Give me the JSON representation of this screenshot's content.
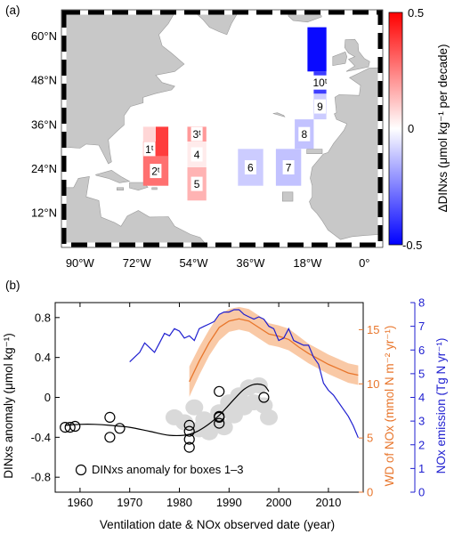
{
  "panel_a": {
    "label": "(a)",
    "lon_ticks": [
      "90°W",
      "72°W",
      "54°W",
      "36°W",
      "18°W",
      "0°"
    ],
    "lat_ticks": [
      "60°N",
      "48°N",
      "36°N",
      "24°N",
      "12°N"
    ],
    "colorbar": {
      "ticks": [
        "0.5",
        "0",
        "-0.5"
      ],
      "label": "ΔDINxs (μmol kg⁻¹ per decade)",
      "colors": {
        "max": "#ff0000",
        "mid": "#ffffff",
        "min": "#0000ff"
      }
    },
    "land_color": "#c8c8c8",
    "boxes": [
      {
        "label": "1ᵗ",
        "lon": [
          -70,
          -66
        ],
        "lat": [
          27,
          31
        ],
        "value": 0.22
      },
      {
        "label": "",
        "lon": [
          -66,
          -62
        ],
        "lat": [
          27,
          35
        ],
        "value": 0.38
      },
      {
        "label": "",
        "lon": [
          -70,
          -66
        ],
        "lat": [
          31,
          35
        ],
        "value": 0.08
      },
      {
        "label": "2ᵗ",
        "lon": [
          -70,
          -62
        ],
        "lat": [
          19,
          27
        ],
        "value": 0.28
      },
      {
        "label": "3ᵗ",
        "lon": [
          -56,
          -50
        ],
        "lat": [
          31,
          35
        ],
        "value": 0.2
      },
      {
        "label": "4",
        "lon": [
          -56,
          -50
        ],
        "lat": [
          24,
          31
        ],
        "value": 0.04
      },
      {
        "label": "5",
        "lon": [
          -56,
          -50
        ],
        "lat": [
          15,
          24
        ],
        "value": 0.15
      },
      {
        "label": "6",
        "lon": [
          -40,
          -32
        ],
        "lat": [
          19,
          29
        ],
        "value": -0.1
      },
      {
        "label": "7",
        "lon": [
          -28,
          -20
        ],
        "lat": [
          19,
          29
        ],
        "value": -0.12
      },
      {
        "label": "8",
        "lon": [
          -22,
          -16
        ],
        "lat": [
          29,
          37
        ],
        "value": -0.12
      },
      {
        "label": "9",
        "lon": [
          -16,
          -12
        ],
        "lat": [
          37,
          44
        ],
        "value": -0.1
      },
      {
        "label": "10ᵗ",
        "lon": [
          -16,
          -12
        ],
        "lat": [
          44,
          50
        ],
        "value": -0.38
      },
      {
        "label": "",
        "lon": [
          -18,
          -12
        ],
        "lat": [
          50,
          62
        ],
        "value": -0.48
      }
    ]
  },
  "panel_b": {
    "label": "(b)",
    "legend": "DINxs anomaly for boxes 1–3",
    "y_left_label": "DINxs anomaly (μmol kg⁻¹)",
    "y_mid_label": "WD of NOx (mmol N m⁻² yr⁻¹)",
    "y_right_label": "NOx emission (Tg N yr⁻¹)",
    "x_label": "Ventilation date & NOx observed date (year)",
    "colors": {
      "wd": "#e8762c",
      "wd_band": "#f9c9a6",
      "emission": "#1f1fd0",
      "cloud": "#d9d9d9",
      "fit": "#000000"
    }
  },
  "chart_data": {
    "type": "scatter",
    "xlim": [
      1955,
      2017
    ],
    "x_ticks": [
      1960,
      1970,
      1980,
      1990,
      2000,
      2010
    ],
    "y_left": {
      "lim": [
        -0.95,
        0.95
      ],
      "ticks": [
        -0.8,
        -0.4,
        0,
        0.4,
        0.8
      ]
    },
    "y_mid": {
      "lim": [
        0,
        17.5
      ],
      "ticks": [
        0,
        5,
        10,
        15
      ]
    },
    "y_right": {
      "lim": [
        0,
        8
      ],
      "ticks": [
        0,
        1,
        2,
        3,
        4,
        5,
        6,
        7,
        8
      ]
    },
    "series": [
      {
        "name": "DINxs anomaly for boxes 1–3",
        "kind": "points",
        "x": [
          1957,
          1958,
          1959,
          1966,
          1966,
          1968,
          1982,
          1982,
          1982,
          1982,
          1988,
          1988,
          1988,
          1988,
          1997
        ],
        "y": [
          -0.3,
          -0.3,
          -0.29,
          -0.2,
          -0.4,
          -0.31,
          -0.28,
          -0.34,
          -0.42,
          -0.5,
          0.06,
          -0.19,
          -0.26,
          -0.2,
          0
        ]
      },
      {
        "kind": "fit",
        "x": [
          1957,
          1960,
          1963,
          1966,
          1970,
          1974,
          1978,
          1982,
          1985,
          1988,
          1991,
          1993,
          1995,
          1997,
          1998
        ],
        "y": [
          -0.28,
          -0.27,
          -0.27,
          -0.28,
          -0.3,
          -0.34,
          -0.38,
          -0.37,
          -0.3,
          -0.18,
          -0.02,
          0.08,
          0.13,
          0.12,
          0.06
        ]
      },
      {
        "kind": "cloud",
        "x": [
          1979,
          1981,
          1983,
          1984,
          1985,
          1986,
          1987,
          1988,
          1989,
          1990,
          1991,
          1992,
          1993,
          1994,
          1995,
          1996,
          1997,
          1998
        ],
        "y": [
          -0.2,
          -0.25,
          -0.1,
          -0.32,
          -0.22,
          -0.35,
          -0.28,
          -0.15,
          -0.3,
          -0.05,
          -0.18,
          0.02,
          -0.1,
          0.1,
          -0.05,
          0.12,
          -0.08,
          -0.2
        ]
      },
      {
        "name": "WD of NOx",
        "kind": "band_line",
        "axis": "mid",
        "x": [
          1982,
          1984,
          1986,
          1988,
          1990,
          1992,
          1994,
          1996,
          1998,
          2000,
          2002,
          2004,
          2006,
          2008,
          2010,
          2012,
          2014,
          2016
        ],
        "y": [
          10.2,
          12.1,
          13.8,
          15.2,
          15.8,
          16.0,
          15.8,
          15.2,
          14.6,
          14.4,
          14.1,
          13.4,
          12.8,
          12.3,
          11.8,
          11.4,
          11.0,
          10.8
        ],
        "lo": [
          8.8,
          10.8,
          12.6,
          14.0,
          14.8,
          15.0,
          14.8,
          14.2,
          13.6,
          13.4,
          13.1,
          12.5,
          11.9,
          11.4,
          10.9,
          10.5,
          10.1,
          9.9
        ],
        "hi": [
          11.6,
          13.4,
          15.0,
          16.4,
          16.9,
          17.1,
          16.9,
          16.3,
          15.6,
          15.4,
          15.1,
          14.4,
          13.7,
          13.2,
          12.7,
          12.3,
          11.9,
          11.7
        ]
      },
      {
        "name": "NOx emission",
        "kind": "line",
        "axis": "right",
        "x": [
          1970,
          1971,
          1972,
          1973,
          1974,
          1975,
          1976,
          1977,
          1978,
          1979,
          1980,
          1981,
          1982,
          1983,
          1984,
          1985,
          1986,
          1987,
          1988,
          1989,
          1990,
          1991,
          1992,
          1993,
          1994,
          1995,
          1996,
          1997,
          1998,
          1999,
          2000,
          2001,
          2002,
          2003,
          2004,
          2005,
          2006,
          2007,
          2008,
          2009,
          2010,
          2011,
          2012,
          2013,
          2014,
          2015,
          2016
        ],
        "y": [
          5.5,
          5.7,
          5.9,
          6.3,
          6.1,
          5.9,
          6.3,
          6.7,
          6.6,
          6.9,
          6.8,
          6.5,
          6.6,
          6.4,
          6.9,
          7.0,
          7.1,
          7.2,
          7.5,
          7.6,
          7.6,
          7.7,
          7.7,
          7.5,
          7.4,
          7.3,
          7.4,
          7.3,
          7.0,
          6.9,
          6.4,
          6.5,
          6.9,
          6.4,
          6.3,
          6.2,
          6.2,
          5.7,
          5.4,
          4.6,
          4.3,
          4.1,
          3.8,
          3.5,
          3.2,
          2.8,
          2.3
        ]
      }
    ]
  }
}
